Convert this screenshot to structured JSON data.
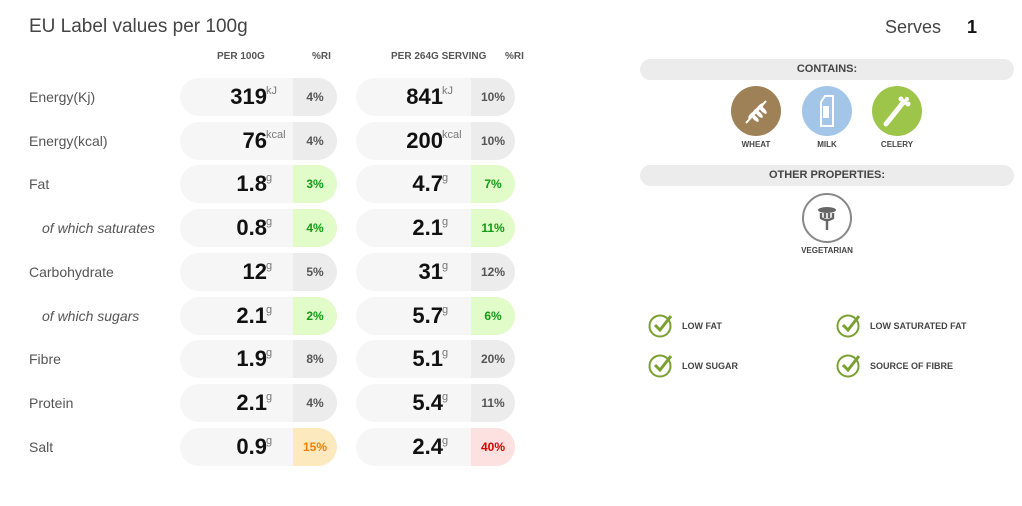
{
  "title": "EU Label values per 100g",
  "serves": {
    "label": "Serves",
    "value": "1"
  },
  "columns": {
    "per100": "PER 100G",
    "ri1": "%RI",
    "perServing": "PER 264G SERVING",
    "ri2": "%RI"
  },
  "rows": [
    {
      "label": "Energy(Kj)",
      "sub": false,
      "v1": "319",
      "u": "kJ",
      "r1": "4%",
      "c1": "grey",
      "v2": "841",
      "r2": "10%",
      "c2": "grey"
    },
    {
      "label": "Energy(kcal)",
      "sub": false,
      "v1": "76",
      "u": "kcal",
      "r1": "4%",
      "c1": "grey",
      "v2": "200",
      "r2": "10%",
      "c2": "grey"
    },
    {
      "label": "Fat",
      "sub": false,
      "v1": "1.8",
      "u": "g",
      "r1": "3%",
      "c1": "green",
      "v2": "4.7",
      "r2": "7%",
      "c2": "green"
    },
    {
      "label": "of which saturates",
      "sub": true,
      "v1": "0.8",
      "u": "g",
      "r1": "4%",
      "c1": "green",
      "v2": "2.1",
      "r2": "11%",
      "c2": "green"
    },
    {
      "label": "Carbohydrate",
      "sub": false,
      "v1": "12",
      "u": "g",
      "r1": "5%",
      "c1": "grey",
      "v2": "31",
      "r2": "12%",
      "c2": "grey"
    },
    {
      "label": "of which sugars",
      "sub": true,
      "v1": "2.1",
      "u": "g",
      "r1": "2%",
      "c1": "green",
      "v2": "5.7",
      "r2": "6%",
      "c2": "green"
    },
    {
      "label": "Fibre",
      "sub": false,
      "v1": "1.9",
      "u": "g",
      "r1": "8%",
      "c1": "grey",
      "v2": "5.1",
      "r2": "20%",
      "c2": "grey"
    },
    {
      "label": "Protein",
      "sub": false,
      "v1": "2.1",
      "u": "g",
      "r1": "4%",
      "c1": "grey",
      "v2": "5.4",
      "r2": "11%",
      "c2": "grey"
    },
    {
      "label": "Salt",
      "sub": false,
      "v1": "0.9",
      "u": "g",
      "r1": "15%",
      "c1": "orange",
      "v2": "2.4",
      "r2": "40%",
      "c2": "red"
    }
  ],
  "contains": {
    "heading": "CONTAINS:",
    "items": [
      {
        "label": "WHEAT",
        "color": "#9e8156"
      },
      {
        "label": "MILK",
        "color": "#a3c5e8"
      },
      {
        "label": "CELERY",
        "color": "#9cc54a"
      }
    ]
  },
  "other": {
    "heading": "OTHER PROPERTIES:",
    "items": [
      {
        "label": "VEGETARIAN"
      }
    ]
  },
  "claims": [
    "LOW FAT",
    "LOW SATURATED FAT",
    "LOW SUGAR",
    "SOURCE OF FIBRE"
  ]
}
